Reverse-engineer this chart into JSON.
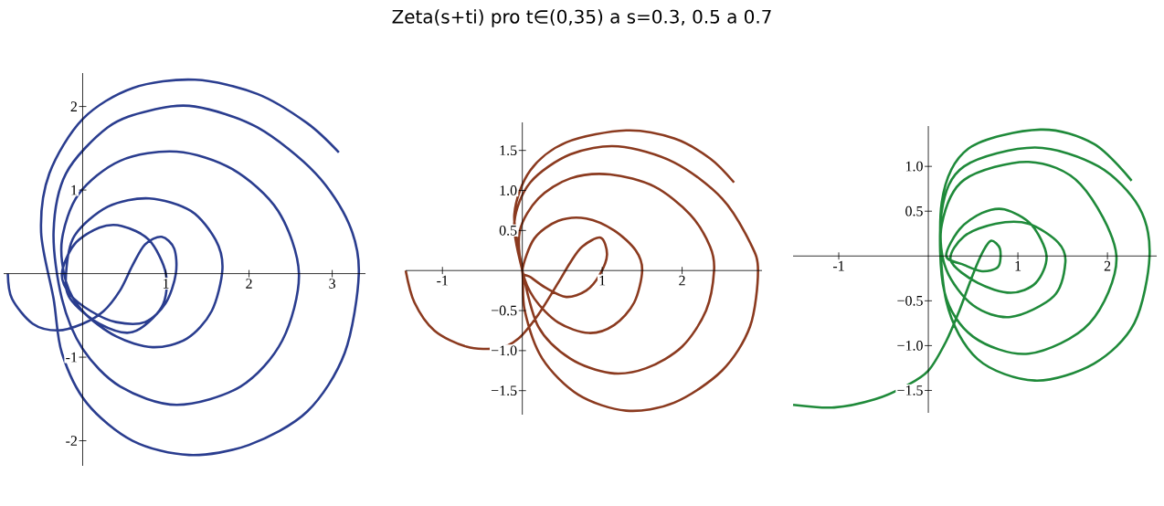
{
  "chart_data": [
    {
      "type": "line",
      "color": "#2a3d8f",
      "x": [
        -0.9,
        -0.85,
        -0.6,
        -0.3,
        0,
        0.25,
        0.45,
        0.6,
        0.75,
        0.95,
        1.1,
        1.12,
        1.0,
        0.75,
        0.4,
        0.1,
        -0.15,
        -0.25,
        -0.1,
        0.2,
        0.47,
        0.8,
        1.0,
        0.95,
        0.6,
        0.2,
        -0.15,
        -0.2,
        -0.1,
        0.3,
        0.8,
        1.3,
        1.6,
        1.68,
        1.55,
        1.25,
        0.84,
        0.4,
        0.0,
        -0.2,
        -0.25,
        -0.05,
        0.45,
        1.13,
        1.8,
        2.35,
        2.6,
        2.4,
        1.9,
        1.13,
        0.45,
        0.0,
        -0.25,
        -0.35,
        -0.2,
        0.3,
        0.8,
        1.35,
        2.1,
        2.8,
        3.2,
        3.32,
        3.15,
        2.7,
        2.0,
        1.28,
        0.6,
        0.05,
        -0.25,
        -0.35,
        -0.5,
        -0.4,
        0.0,
        0.6,
        1.35,
        2.1,
        2.7,
        3.08
      ],
      "values": [
        0,
        -0.3,
        -0.6,
        -0.68,
        -0.6,
        -0.45,
        -0.2,
        0.1,
        0.35,
        0.44,
        0.3,
        0,
        -0.35,
        -0.58,
        -0.58,
        -0.45,
        -0.25,
        0,
        0.35,
        0.55,
        0.57,
        0.4,
        0.0,
        -0.4,
        -0.7,
        -0.6,
        -0.3,
        0,
        0.45,
        0.8,
        0.9,
        0.75,
        0.4,
        0.05,
        -0.45,
        -0.78,
        -0.88,
        -0.75,
        -0.45,
        -0.1,
        0.4,
        0.95,
        1.35,
        1.46,
        1.25,
        0.75,
        0,
        -0.8,
        -1.35,
        -1.57,
        -1.35,
        -0.9,
        -0.3,
        0.5,
        1.2,
        1.75,
        1.95,
        2.0,
        1.75,
        1.2,
        0.6,
        0,
        -0.95,
        -1.65,
        -2.05,
        -2.17,
        -2.0,
        -1.55,
        -0.95,
        -0.3,
        0.5,
        1.2,
        1.85,
        2.22,
        2.32,
        2.15,
        1.8,
        1.45
      ],
      "xlim": [
        -0.95,
        3.4
      ],
      "ylim": [
        -2.3,
        2.4
      ],
      "xticks": [
        1,
        2,
        3
      ],
      "yticks": [
        -2,
        -1,
        1,
        2
      ],
      "marker": "none"
    },
    {
      "type": "line",
      "title": "Zeta(s+ti) pro t∈(0,35) a s=0.3, 0.5 a 0.7",
      "color": "#8b3a1f",
      "x": [
        -1.46,
        -1.35,
        -1.1,
        -0.7,
        -0.3,
        -0.05,
        0.2,
        0.45,
        0.6,
        0.75,
        0.98,
        1.06,
        0.97,
        0.8,
        0.55,
        0.3,
        0.1,
        0,
        0.15,
        0.45,
        0.8,
        1.15,
        1.42,
        1.5,
        1.4,
        1.15,
        0.83,
        0.45,
        0.15,
        0,
        -0.03,
        0.2,
        0.6,
        1.1,
        1.65,
        2.1,
        2.35,
        2.4,
        2.3,
        2.0,
        1.55,
        1.1,
        0.6,
        0.2,
        0,
        -0.1,
        0.1,
        0.6,
        1.2,
        1.9,
        2.5,
        2.85,
        2.95,
        2.85,
        2.5,
        1.9,
        1.3,
        0.7,
        0.25,
        0.03,
        0,
        -0.1,
        0.1,
        0.55,
        1.3,
        1.9,
        2.35,
        2.65
      ],
      "values": [
        0,
        -0.4,
        -0.75,
        -0.95,
        -0.97,
        -0.85,
        -0.55,
        -0.15,
        0.1,
        0.3,
        0.41,
        0.2,
        -0.05,
        -0.25,
        -0.33,
        -0.22,
        -0.08,
        0,
        0.4,
        0.62,
        0.65,
        0.5,
        0.25,
        0,
        -0.4,
        -0.68,
        -0.78,
        -0.65,
        -0.35,
        0,
        0.5,
        0.9,
        1.15,
        1.2,
        1.05,
        0.7,
        0.3,
        0,
        -0.5,
        -0.95,
        -1.22,
        -1.28,
        -1.1,
        -0.7,
        0,
        0.6,
        1.1,
        1.45,
        1.55,
        1.35,
        0.9,
        0.35,
        0,
        -0.7,
        -1.25,
        -1.65,
        -1.75,
        -1.55,
        -1.1,
        -0.5,
        0,
        0.7,
        1.25,
        1.6,
        1.75,
        1.65,
        1.4,
        1.1
      ],
      "xlim": [
        -1.46,
        3.0
      ],
      "ylim": [
        -1.8,
        1.85
      ],
      "xticks": [
        -1,
        1,
        2
      ],
      "yticks": [
        {
          "value": -1.5,
          "label": "−1.5"
        },
        {
          "value": -1,
          "label": "−1.0"
        },
        {
          "value": -0.5,
          "label": "−0.5"
        },
        0.5,
        {
          "value": 1,
          "label": "1.0"
        },
        1.5
      ],
      "marker": "none"
    },
    {
      "type": "line",
      "color": "#1f8a3a",
      "x": [
        -1.51,
        -1.05,
        -0.6,
        -0.25,
        0,
        0.2,
        0.35,
        0.5,
        0.61,
        0.7,
        0.8,
        0.78,
        0.6,
        0.4,
        0.2,
        0.35,
        0.6,
        0.85,
        1.15,
        1.32,
        1.2,
        0.92,
        0.55,
        0.25,
        0.4,
        0.75,
        1.12,
        1.45,
        1.53,
        1.4,
        0.92,
        0.5,
        0.2,
        0.15,
        0.4,
        1.12,
        1.7,
        2.1,
        1.8,
        1.12,
        0.5,
        0.18,
        0.15,
        0.4,
        1.19,
        1.9,
        2.35,
        2.47,
        2.3,
        1.85,
        1.19,
        0.55,
        0.2,
        0.15,
        0.45,
        1.25,
        1.85,
        2.27
      ],
      "values": [
        -1.66,
        -1.69,
        -1.6,
        -1.45,
        -1.28,
        -0.95,
        -0.6,
        -0.2,
        0.05,
        0.17,
        0.08,
        -0.12,
        -0.17,
        -0.1,
        0,
        0.3,
        0.48,
        0.52,
        0.35,
        0,
        -0.3,
        -0.41,
        -0.3,
        -0.05,
        0.22,
        0.36,
        0.36,
        0.15,
        -0.07,
        -0.45,
        -0.68,
        -0.55,
        -0.15,
        0.35,
        0.85,
        1.05,
        0.8,
        0,
        -0.75,
        -1.09,
        -0.9,
        -0.4,
        0.5,
        1.0,
        1.21,
        1.0,
        0.55,
        0,
        -0.75,
        -1.2,
        -1.39,
        -1.15,
        -0.5,
        0.6,
        1.2,
        1.41,
        1.25,
        0.84
      ],
      "xlim": [
        -1.51,
        2.55
      ],
      "ylim": [
        -1.75,
        1.45
      ],
      "xticks": [
        -1,
        1,
        2
      ],
      "yticks": [
        {
          "value": -1.5,
          "label": "−1.5"
        },
        {
          "value": -1,
          "label": "−1.0"
        },
        {
          "value": -0.5,
          "label": "−0.5"
        },
        0.5,
        {
          "value": 1,
          "label": "1.0"
        }
      ],
      "marker": "none"
    }
  ]
}
